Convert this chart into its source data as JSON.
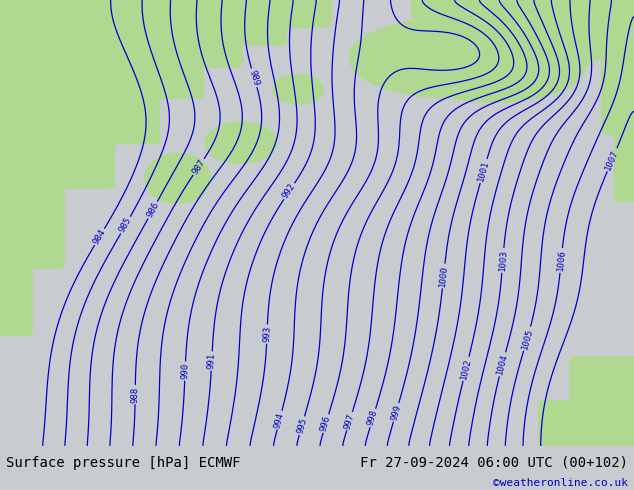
{
  "title_left": "Surface pressure [hPa] ECMWF",
  "title_right": "Fr 27-09-2024 06:00 UTC (00+102)",
  "copyright": "©weatheronline.co.uk",
  "sea_color": "#c8ccd0",
  "land_color": "#b0d890",
  "line_color": "#0000cc",
  "label_color": "#0000cc",
  "footer_bg": "#dcdcdc",
  "pressure_min": 984,
  "pressure_max": 1007,
  "pressure_step": 1,
  "figsize": [
    6.34,
    4.9
  ],
  "dpi": 100
}
